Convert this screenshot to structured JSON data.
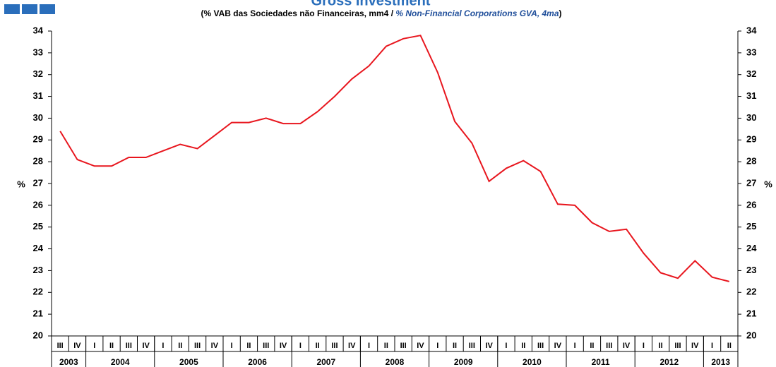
{
  "chart_data": {
    "type": "line",
    "title": "Gross Investment",
    "subtitle": "(% VAB das Sociedades não Financeiras, mm4 / ",
    "subtitle_en": "% Non-Financial Corporations GVA, 4ma",
    "subtitle_end": ")",
    "y_label": "%",
    "y2_label": "%",
    "years": [
      {
        "label": "2003",
        "quarters": [
          "III",
          "IV"
        ]
      },
      {
        "label": "2004",
        "quarters": [
          "I",
          "II",
          "III",
          "IV"
        ]
      },
      {
        "label": "2005",
        "quarters": [
          "I",
          "II",
          "III",
          "IV"
        ]
      },
      {
        "label": "2006",
        "quarters": [
          "I",
          "II",
          "III",
          "IV"
        ]
      },
      {
        "label": "2007",
        "quarters": [
          "I",
          "II",
          "III",
          "IV"
        ]
      },
      {
        "label": "2008",
        "quarters": [
          "I",
          "II",
          "III",
          "IV"
        ]
      },
      {
        "label": "2009",
        "quarters": [
          "I",
          "II",
          "III",
          "IV"
        ]
      },
      {
        "label": "2010",
        "quarters": [
          "I",
          "II",
          "III",
          "IV"
        ]
      },
      {
        "label": "2011",
        "quarters": [
          "I",
          "II",
          "III",
          "IV"
        ]
      },
      {
        "label": "2012",
        "quarters": [
          "I",
          "II",
          "III",
          "IV"
        ]
      },
      {
        "label": "2013",
        "quarters": [
          "I",
          "II"
        ]
      }
    ],
    "values": [
      29.4,
      28.1,
      27.8,
      27.8,
      28.2,
      28.2,
      28.5,
      28.8,
      28.6,
      29.2,
      29.8,
      29.8,
      30.0,
      29.75,
      29.75,
      30.3,
      31.0,
      31.8,
      32.4,
      33.3,
      33.65,
      33.8,
      32.1,
      29.85,
      28.85,
      27.1,
      27.7,
      28.05,
      27.55,
      26.05,
      26.0,
      25.2,
      24.8,
      24.9,
      23.8,
      22.9,
      22.65,
      23.45,
      22.7,
      22.5
    ],
    "color": "#e8161e",
    "ylim": [
      20,
      34
    ],
    "yticks": [
      20,
      21,
      22,
      23,
      24,
      25,
      26,
      27,
      28,
      29,
      30,
      31,
      32,
      33,
      34
    ],
    "y2lim": [
      20,
      34
    ],
    "y2ticks": [
      20,
      21,
      22,
      23,
      24,
      25,
      26,
      27,
      28,
      29,
      30,
      31,
      32,
      33,
      34
    ]
  }
}
